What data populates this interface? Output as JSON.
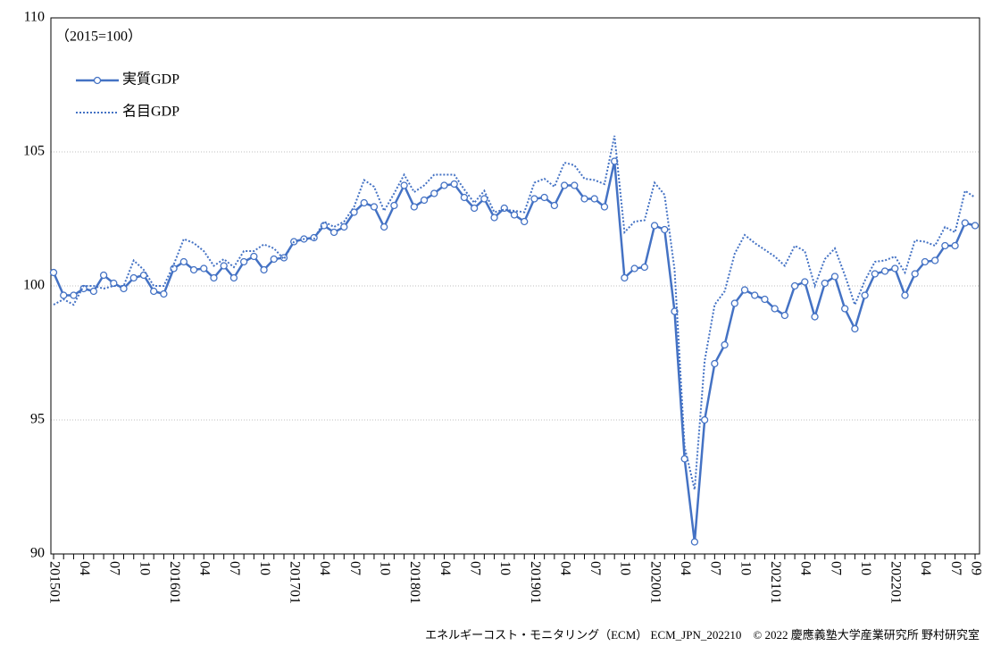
{
  "chart_data": {
    "type": "line",
    "subtitle": "（2015=100）",
    "source": "エネルギーコスト・モニタリング（ECM） ECM_JPN_202210　© 2022 慶應義塾大学産業研究所 野村研究室",
    "categories": [
      "201501",
      null,
      null,
      "04",
      null,
      null,
      "07",
      null,
      null,
      "10",
      null,
      null,
      "201601",
      null,
      null,
      "04",
      null,
      null,
      "07",
      null,
      null,
      "10",
      null,
      null,
      "201701",
      null,
      null,
      "04",
      null,
      null,
      "07",
      null,
      null,
      "10",
      null,
      null,
      "201801",
      null,
      null,
      "04",
      null,
      null,
      "07",
      null,
      null,
      "10",
      null,
      null,
      "201901",
      null,
      null,
      "04",
      null,
      null,
      "07",
      null,
      null,
      "10",
      null,
      null,
      "202001",
      null,
      null,
      "04",
      null,
      null,
      "07",
      null,
      null,
      "10",
      null,
      null,
      "202101",
      null,
      null,
      "04",
      null,
      null,
      "07",
      null,
      null,
      "10",
      null,
      null,
      "202201",
      null,
      null,
      "04",
      null,
      null,
      "07",
      null,
      "09"
    ],
    "series": [
      {
        "name": "実質GDP",
        "color": "#4472c4",
        "line_style": "solid",
        "marker": "circle",
        "values": [
          100.5,
          99.65,
          99.65,
          99.9,
          99.8,
          100.4,
          100.1,
          99.9,
          100.3,
          100.4,
          99.8,
          99.7,
          100.65,
          100.9,
          100.6,
          100.65,
          100.3,
          100.75,
          100.3,
          100.9,
          101.1,
          100.6,
          101.0,
          101.05,
          101.65,
          101.75,
          101.8,
          102.25,
          102.0,
          102.2,
          102.75,
          103.1,
          102.95,
          102.2,
          103.0,
          103.75,
          102.95,
          103.2,
          103.45,
          103.75,
          103.8,
          103.3,
          102.9,
          103.25,
          102.55,
          102.9,
          102.65,
          102.4,
          103.25,
          103.3,
          103.0,
          103.75,
          103.75,
          103.25,
          103.25,
          102.95,
          104.65,
          100.3,
          100.65,
          100.7,
          102.25,
          102.1,
          99.05,
          93.55,
          90.45,
          95.0,
          97.1,
          97.8,
          99.35,
          99.85,
          99.65,
          99.5,
          99.15,
          98.9,
          100.0,
          100.15,
          98.85,
          100.1,
          100.35,
          99.15,
          98.4,
          99.65,
          100.45,
          100.55,
          100.65,
          99.65,
          100.45,
          100.9,
          100.95,
          101.5,
          101.5,
          102.35,
          102.25
        ]
      },
      {
        "name": "名目GDP",
        "color": "#4472c4",
        "line_style": "dotted",
        "marker": "none",
        "values": [
          99.3,
          99.5,
          99.3,
          100.0,
          100.0,
          99.9,
          100.0,
          100.0,
          100.95,
          100.6,
          100.0,
          100.0,
          100.8,
          101.75,
          101.6,
          101.3,
          100.75,
          101.0,
          100.7,
          101.3,
          101.3,
          101.55,
          101.4,
          101.0,
          101.65,
          101.75,
          101.75,
          102.4,
          102.2,
          102.4,
          102.95,
          103.95,
          103.7,
          102.8,
          103.45,
          104.15,
          103.5,
          103.75,
          104.15,
          104.15,
          104.15,
          103.6,
          103.1,
          103.55,
          102.75,
          102.85,
          102.8,
          102.75,
          103.85,
          104.0,
          103.7,
          104.6,
          104.5,
          104.0,
          103.95,
          103.8,
          105.6,
          102.0,
          102.4,
          102.45,
          103.85,
          103.4,
          100.6,
          94.0,
          92.4,
          97.2,
          99.3,
          99.8,
          101.2,
          101.9,
          101.6,
          101.35,
          101.1,
          100.75,
          101.5,
          101.3,
          100.0,
          101.0,
          101.4,
          100.4,
          99.3,
          100.2,
          100.9,
          100.95,
          101.1,
          100.5,
          101.7,
          101.65,
          101.5,
          102.2,
          102.0,
          103.55,
          103.3
        ]
      }
    ],
    "ylim": [
      90,
      110
    ],
    "yticks": [
      90,
      95,
      100,
      105,
      110
    ],
    "grid": true,
    "legend": "upper left"
  }
}
